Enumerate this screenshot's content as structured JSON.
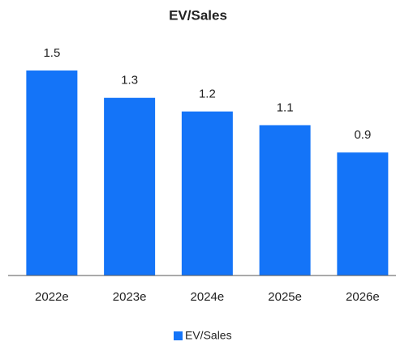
{
  "chart_data": {
    "type": "bar",
    "title": "EV/Sales",
    "categories": [
      "2022e",
      "2023e",
      "2024e",
      "2025e",
      "2026e"
    ],
    "series": [
      {
        "name": "EV/Sales",
        "color": "#1474f8",
        "values": [
          1.5,
          1.3,
          1.2,
          1.1,
          0.9
        ]
      }
    ],
    "legend": "bottom"
  }
}
